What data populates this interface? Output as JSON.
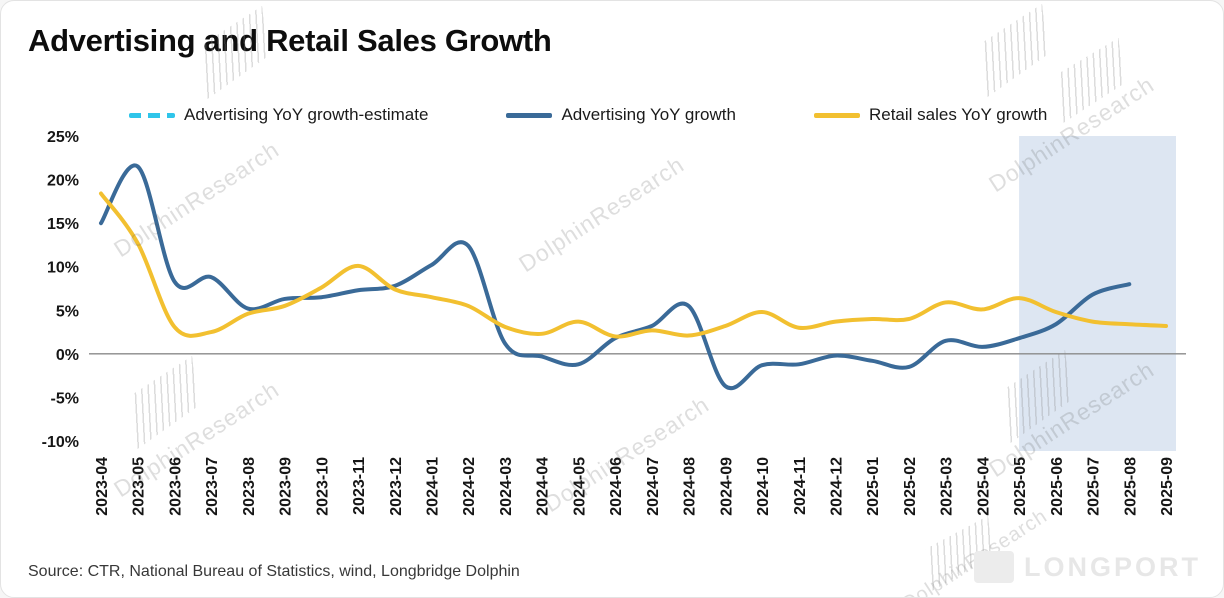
{
  "title": "Advertising and Retail Sales Growth",
  "source": "Source: CTR, National Bureau of Statistics, wind, Longbridge Dolphin",
  "watermark": "DolphinResearch",
  "brand": "LONGPORT",
  "colors": {
    "forecast_band": "#dde6f2",
    "zero_line": "#8a8a8a"
  },
  "legend": [
    {
      "label": "Advertising YoY growth-estimate",
      "color": "#2fc5ea",
      "style": "dashed"
    },
    {
      "label": "Advertising YoY growth",
      "color": "#3a6a98",
      "style": "solid"
    },
    {
      "label": "Retail sales YoY growth",
      "color": "#f2c030",
      "style": "solid"
    }
  ],
  "chart_data": {
    "type": "line",
    "title": "Advertising and Retail Sales Growth",
    "categories": [
      "2023-04",
      "2023-05",
      "2023-06",
      "2023-07",
      "2023-08",
      "2023-09",
      "2023-10",
      "2023-11",
      "2023-12",
      "2024-01",
      "2024-02",
      "2024-03",
      "2024-04",
      "2024-05",
      "2024-06",
      "2024-07",
      "2024-08",
      "2024-09",
      "2024-10",
      "2024-11",
      "2024-12",
      "2025-01",
      "2025-02",
      "2025-03",
      "2025-04",
      "2025-05",
      "2025-06",
      "2025-07",
      "2025-08",
      "2025-09"
    ],
    "series": [
      {
        "name": "Advertising YoY growth-estimate",
        "color": "#2fc5ea",
        "dashed": true,
        "values": [
          null,
          null,
          null,
          null,
          null,
          null,
          null,
          null,
          null,
          null,
          null,
          null,
          null,
          null,
          null,
          null,
          null,
          null,
          null,
          null,
          null,
          null,
          null,
          null,
          null,
          null,
          null,
          null,
          null,
          null
        ]
      },
      {
        "name": "Advertising YoY growth",
        "color": "#3a6a98",
        "dashed": false,
        "values": [
          15.0,
          21.5,
          8.3,
          8.8,
          5.2,
          6.3,
          6.5,
          7.3,
          7.8,
          10.2,
          12.4,
          1.2,
          -0.3,
          -1.2,
          1.8,
          3.2,
          5.5,
          -3.7,
          -1.3,
          -1.2,
          -0.2,
          -0.8,
          -1.5,
          1.5,
          0.8,
          1.8,
          3.4,
          6.8,
          8.0,
          null
        ]
      },
      {
        "name": "Retail sales YoY growth",
        "color": "#f2c030",
        "dashed": false,
        "values": [
          18.4,
          12.7,
          3.1,
          2.5,
          4.6,
          5.5,
          7.6,
          10.1,
          7.4,
          6.5,
          5.5,
          3.1,
          2.3,
          3.7,
          2.0,
          2.7,
          2.1,
          3.2,
          4.8,
          3.0,
          3.7,
          4.0,
          4.0,
          5.9,
          5.1,
          6.4,
          4.8,
          3.7,
          3.4,
          3.2
        ]
      }
    ],
    "ylim": [
      -10,
      25
    ],
    "yticks": [
      25,
      20,
      15,
      10,
      5,
      0,
      -5,
      -10
    ],
    "y_format": "percent",
    "grid": false,
    "legend_position": "top",
    "highlight_region": {
      "from": "2025-05",
      "to": "2025-09",
      "color": "#dde6f2"
    }
  }
}
